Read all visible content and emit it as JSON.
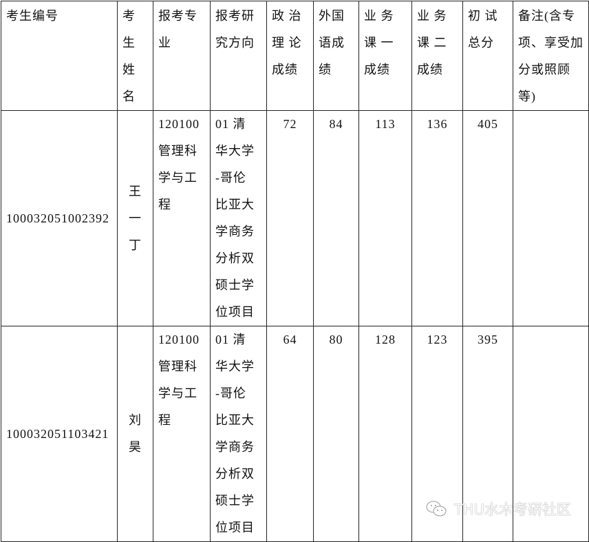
{
  "headers": [
    "考生编号",
    "考\n生\n姓\n名",
    "报考专\n业",
    "报考研\n究方向",
    "政 治\n理 论\n成绩",
    "外国\n语成\n绩",
    "业 务\n课 一\n成绩",
    "业 务\n课 二\n成绩",
    "初 试\n总分",
    "备注(含专\n项、享受加\n分或照顾\n等)"
  ],
  "rows": [
    {
      "id": "100032051002392",
      "name": "王\n一\n丁",
      "major": "120100\n管理科\n学与工\n程",
      "direction": "01 清\n华大学\n-哥伦\n比亚大\n学商务\n分析双\n硕士学\n位项目",
      "politics": "72",
      "language": "84",
      "course1": "113",
      "course2": "136",
      "total": "405",
      "note": ""
    },
    {
      "id": "100032051103421",
      "name": "刘\n昊",
      "major": "120100\n管理科\n学与工\n程",
      "direction": "01 清\n华大学\n-哥伦\n比亚大\n学商务\n分析双\n硕士学\n位项目",
      "politics": "64",
      "language": "80",
      "course1": "128",
      "course2": "123",
      "total": "395",
      "note": ""
    }
  ],
  "watermark": {
    "text": "THU水木考研社区",
    "icon": "wechat-icon"
  }
}
